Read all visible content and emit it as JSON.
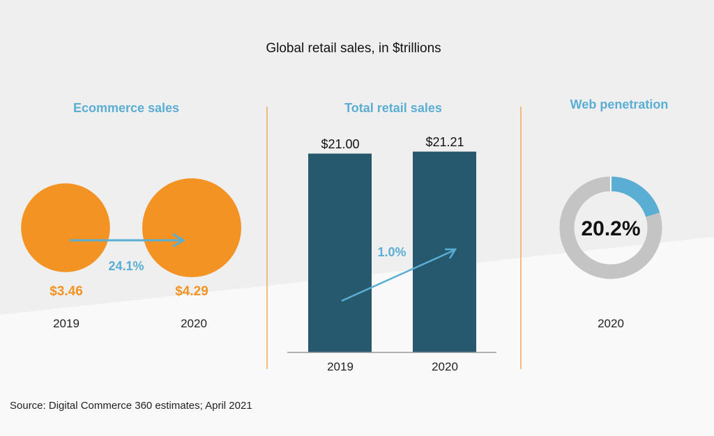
{
  "colors": {
    "orange": "#f39323",
    "blue": "#5aaed3",
    "bar": "#27596e",
    "gray": "#c4c4c4",
    "divider": "#f3a75a"
  },
  "chart_data": [
    {
      "type": "bubble",
      "title": "Ecommerce sales",
      "categories": [
        "2019",
        "2020"
      ],
      "values": [
        3.46,
        4.29
      ],
      "value_labels": [
        "$3.46",
        "$4.29"
      ],
      "growth_label": "24.1%"
    },
    {
      "type": "bar",
      "title": "Total retail sales",
      "categories": [
        "2019",
        "2020"
      ],
      "values": [
        21.0,
        21.21
      ],
      "value_labels": [
        "$21.00",
        "$21.21"
      ],
      "growth_label": "1.0%",
      "ylim": [
        0,
        21.7
      ]
    },
    {
      "type": "pie",
      "title": "Web penetration",
      "categories": [
        "2020"
      ],
      "values": [
        20.2
      ],
      "value_label": "20.2%"
    }
  ],
  "main_title": "Global retail sales, in $trillions",
  "source": "Source: Digital Commerce 360 estimates; April 2021"
}
